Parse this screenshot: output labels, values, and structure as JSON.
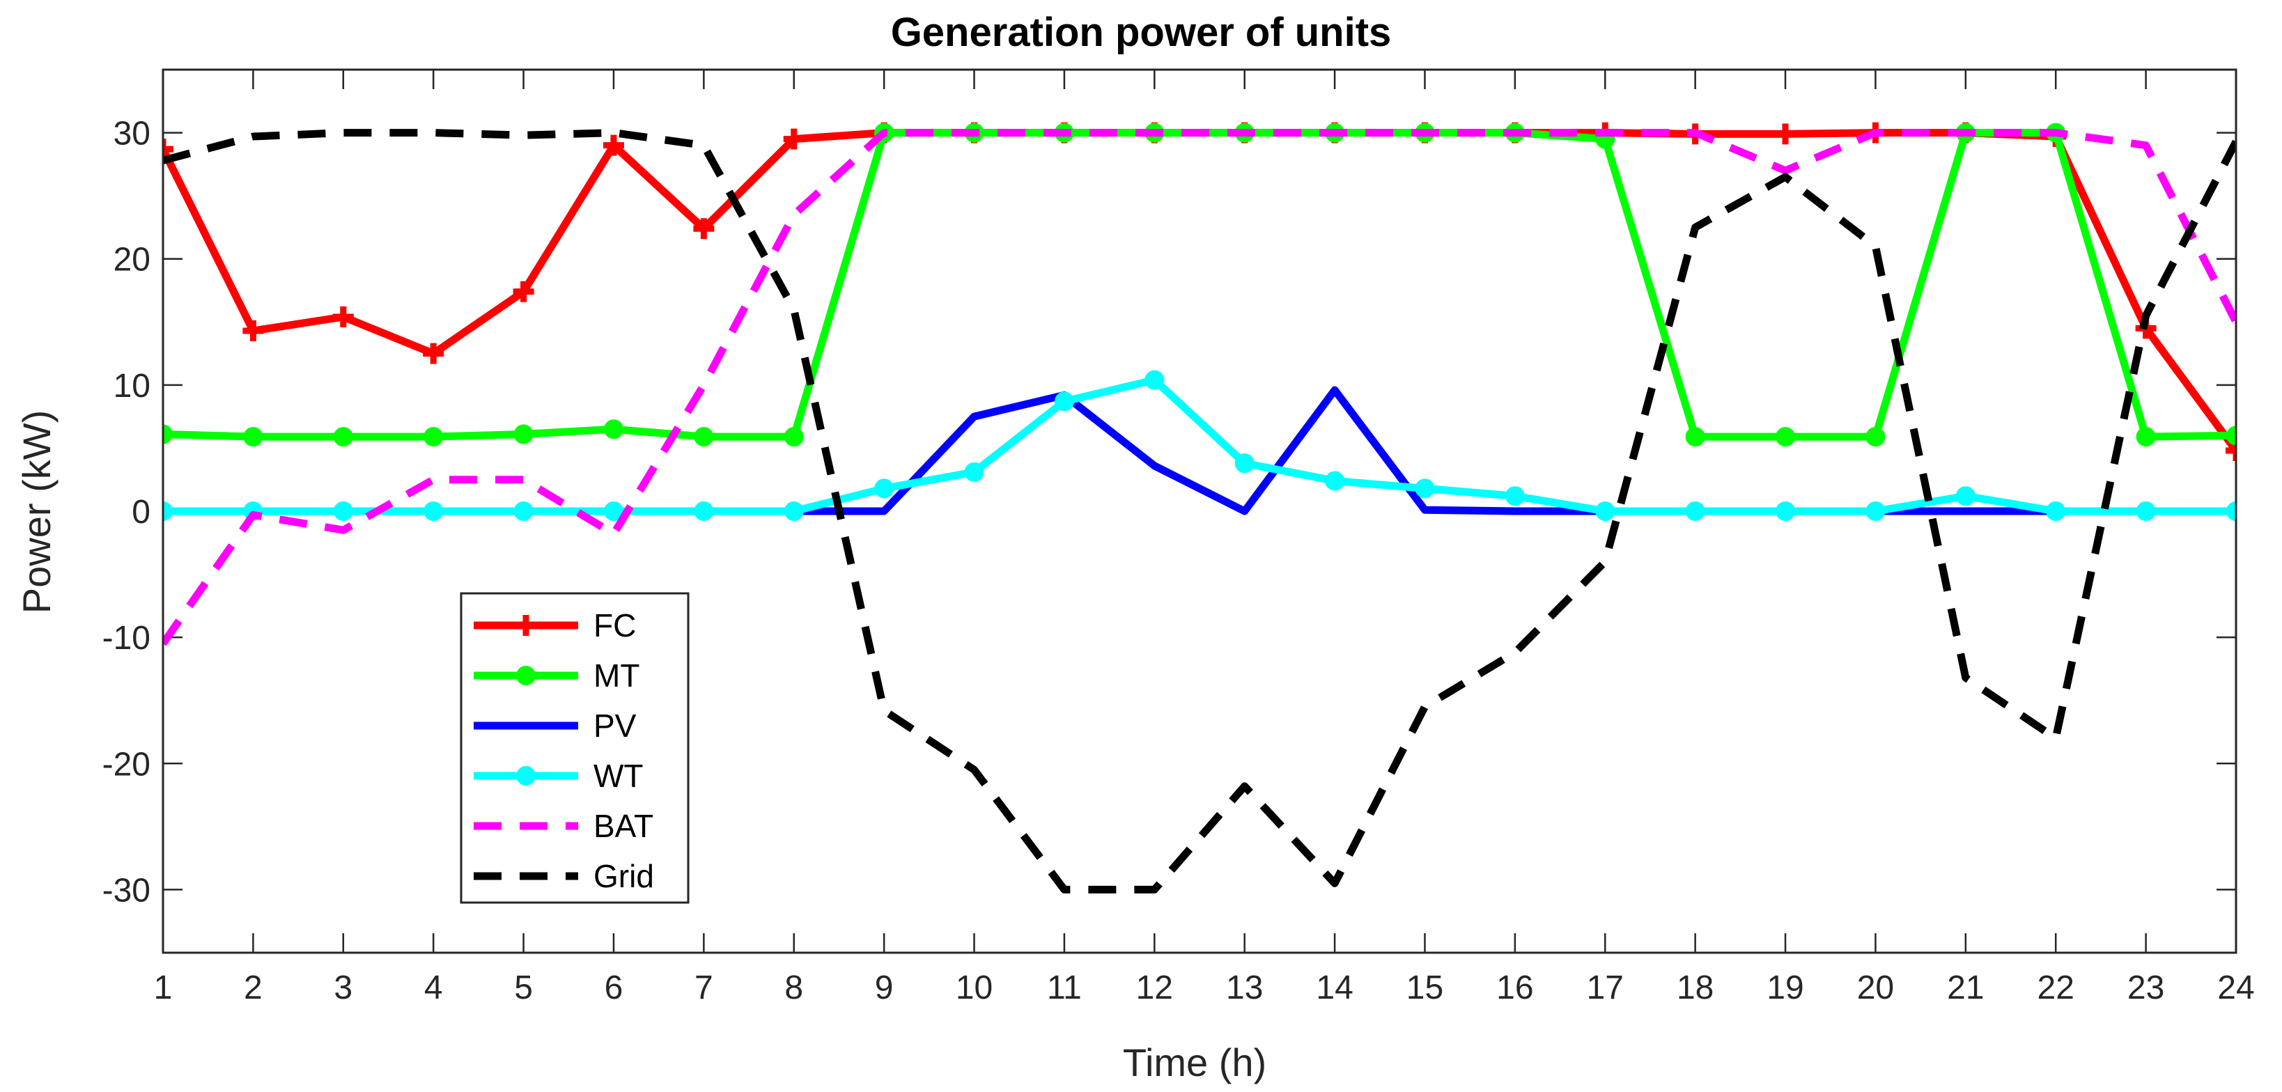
{
  "chart_data": {
    "type": "line",
    "title": "Generation power of units",
    "xlabel": "Time (h)",
    "ylabel": "Power (kW)",
    "xlim": [
      1,
      24
    ],
    "ylim": [
      -35,
      35
    ],
    "xticks": [
      1,
      2,
      3,
      4,
      5,
      6,
      7,
      8,
      9,
      10,
      11,
      12,
      13,
      14,
      15,
      16,
      17,
      18,
      19,
      20,
      21,
      22,
      23,
      24
    ],
    "yticks": [
      -30,
      -20,
      -10,
      0,
      10,
      20,
      30
    ],
    "x": [
      1,
      2,
      3,
      4,
      5,
      6,
      7,
      8,
      9,
      10,
      11,
      12,
      13,
      14,
      15,
      16,
      17,
      18,
      19,
      20,
      21,
      22,
      23,
      24
    ],
    "legend_position": "lower-left",
    "series": [
      {
        "name": "FC",
        "color": "#ff0000",
        "style": "solid",
        "marker": "plus",
        "values": [
          28.7,
          14.3,
          15.4,
          12.5,
          17.4,
          29.0,
          22.4,
          29.5,
          30.0,
          30.0,
          30.0,
          30.0,
          30.0,
          30.0,
          30.0,
          30.0,
          30.0,
          29.9,
          29.9,
          30.0,
          30.0,
          29.7,
          14.5,
          4.8
        ]
      },
      {
        "name": "MT",
        "color": "#00ff00",
        "style": "solid",
        "marker": "circle",
        "values": [
          6.1,
          5.9,
          5.9,
          5.9,
          6.1,
          6.5,
          5.9,
          5.9,
          30.0,
          30.0,
          30.0,
          30.0,
          30.0,
          30.0,
          30.0,
          30.0,
          29.5,
          5.9,
          5.9,
          5.9,
          30.0,
          30.0,
          5.9,
          6.0
        ]
      },
      {
        "name": "PV",
        "color": "#0000ff",
        "style": "solid",
        "marker": "none",
        "values": [
          0,
          0,
          0,
          0,
          0,
          0,
          0,
          0,
          0,
          7.5,
          9.2,
          3.6,
          0,
          9.6,
          0.1,
          0,
          0,
          0,
          0,
          0,
          0,
          0,
          0,
          0
        ]
      },
      {
        "name": "WT",
        "color": "#00ffff",
        "style": "solid",
        "marker": "circle",
        "values": [
          0,
          0,
          0,
          0,
          0,
          0,
          0,
          0,
          1.8,
          3.1,
          8.7,
          10.4,
          3.8,
          2.4,
          1.8,
          1.2,
          0,
          0,
          0,
          0,
          1.2,
          0,
          0,
          0
        ]
      },
      {
        "name": "BAT",
        "color": "#ff00ff",
        "style": "dashed",
        "marker": "none",
        "values": [
          -10.5,
          -0.3,
          -1.5,
          2.5,
          2.5,
          -1.8,
          10.0,
          23.5,
          30.0,
          30.0,
          30.0,
          30.0,
          30.0,
          30.0,
          30.0,
          30.0,
          30.0,
          30.0,
          27.0,
          30.0,
          30.0,
          30.0,
          29.0,
          15.0
        ]
      },
      {
        "name": "Grid",
        "color": "#000000",
        "style": "dashed",
        "marker": "none",
        "values": [
          27.8,
          29.7,
          30.0,
          30.0,
          29.8,
          30.0,
          29.0,
          16.0,
          -15.8,
          -20.5,
          -30.0,
          -30.0,
          -21.8,
          -29.5,
          -15.5,
          -11.2,
          -4.0,
          22.5,
          26.5,
          21.0,
          -13.2,
          -18.0,
          15.5,
          29.3
        ]
      }
    ]
  }
}
